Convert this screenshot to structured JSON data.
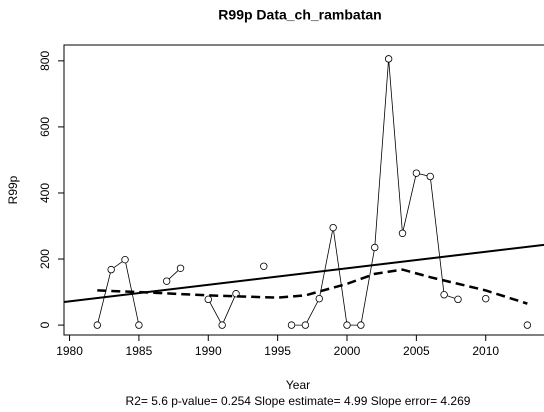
{
  "chart_data": {
    "type": "line",
    "title": "R99p   Data_ch_rambatan",
    "xlabel": "Year",
    "ylabel": "R99p",
    "footnote": "R2= 5.6  p-value= 0.254  Slope estimate= 4.99  Slope error= 4.269",
    "series": [
      {
        "style": "points-lines",
        "color": "#000000",
        "x": [
          1982,
          1983,
          1984,
          1985,
          1986,
          1987,
          1988,
          1989,
          1990,
          1991,
          1992,
          1993,
          1994,
          1995,
          1996,
          1997,
          1998,
          1999,
          2000,
          2001,
          2002,
          2003,
          2004,
          2005,
          2006,
          2007,
          2008,
          2009,
          2010,
          2011,
          2012,
          2013
        ],
        "values": [
          0,
          168,
          198,
          0,
          null,
          133,
          172,
          null,
          78,
          0,
          95,
          null,
          178,
          null,
          0,
          0,
          80,
          295,
          0,
          0,
          235,
          806,
          278,
          460,
          450,
          92,
          78,
          null,
          80,
          null,
          null,
          0
        ]
      },
      {
        "style": "solid",
        "color": "#000000",
        "x": [
          1979.6,
          2014.2
        ],
        "values": [
          70,
          243
        ]
      },
      {
        "style": "dashed",
        "color": "#000000",
        "x": [
          1982,
          1985,
          1990,
          1995,
          1997,
          2000,
          2002,
          2004,
          2006,
          2010,
          2013
        ],
        "values": [
          105,
          100,
          90,
          83,
          90,
          125,
          155,
          168,
          145,
          105,
          65
        ]
      }
    ],
    "xlim": [
      1979.6,
      2014.2
    ],
    "ylim": [
      -30,
      848
    ],
    "xticks": [
      1980,
      1985,
      1990,
      1995,
      2000,
      2005,
      2010
    ],
    "yticks": [
      0,
      200,
      400,
      600,
      800
    ]
  }
}
